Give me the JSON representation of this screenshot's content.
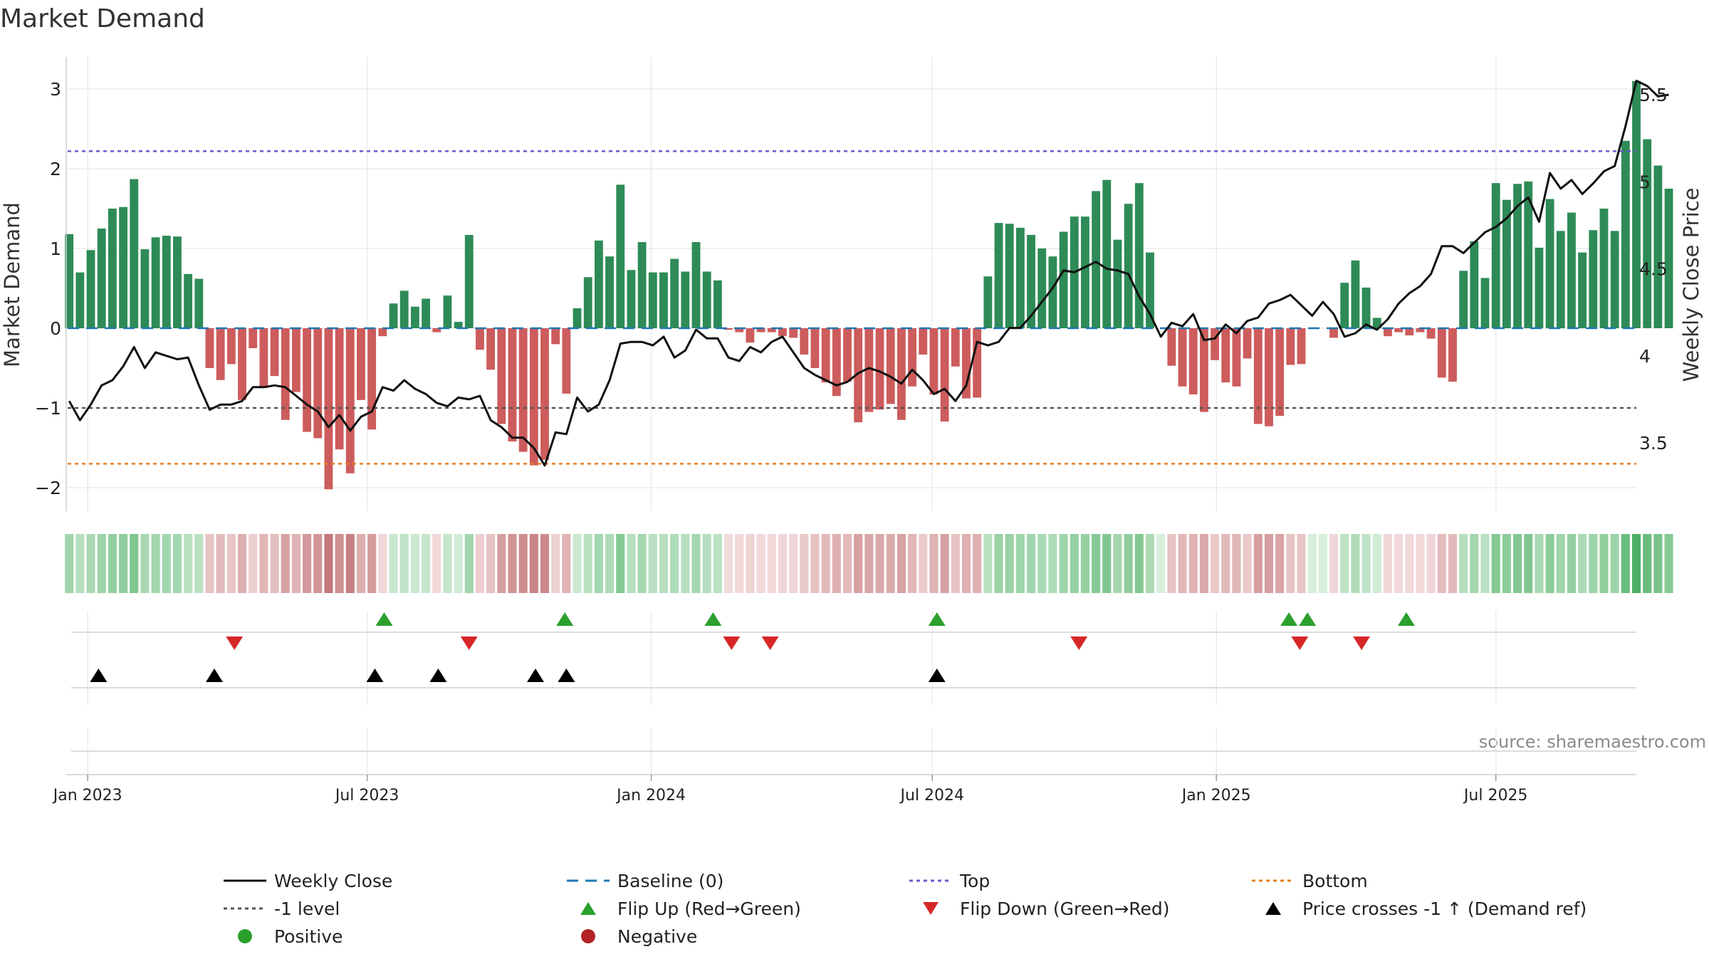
{
  "chart_data": {
    "type": "bar",
    "title": "Market Demand",
    "ylabel": "Market Demand",
    "y2label": "Weekly Close Price",
    "source": "source: sharemaestro.com",
    "ylim": [
      -2.3,
      3.3
    ],
    "y2lim": [
      3.1,
      5.65
    ],
    "yticks": [
      3,
      2,
      1,
      0,
      -1,
      -2
    ],
    "yticklabels": [
      "3",
      "2",
      "1",
      "0",
      "−1",
      "−2"
    ],
    "y2ticks": [
      5.5,
      5,
      4.5,
      4,
      3.5
    ],
    "y2ticklabels": [
      "5.5",
      "5",
      "4.5",
      "4",
      "3.5"
    ],
    "x_start": "2022-12-19",
    "x_end": "2025-09-30",
    "first_week": "2022-12-20",
    "xticks": [
      "2023-01-01",
      "2023-07-01",
      "2024-01-01",
      "2024-07-01",
      "2025-01-01",
      "2025-07-01"
    ],
    "xticklabels": [
      "Jan 2023",
      "Jul 2023",
      "Jan 2024",
      "Jul 2024",
      "Jan 2025",
      "Jul 2025"
    ],
    "reference_lines": {
      "top": 2.22,
      "bottom": -1.7,
      "minus_one": -1,
      "baseline": 0
    },
    "demand": [
      1.18,
      0.7,
      0.98,
      1.25,
      1.5,
      1.52,
      1.87,
      0.99,
      1.14,
      1.16,
      1.15,
      0.68,
      0.62,
      -0.5,
      -0.65,
      -0.45,
      -0.9,
      -0.25,
      -0.75,
      -0.6,
      -1.15,
      -0.8,
      -1.3,
      -1.38,
      -2.02,
      -1.52,
      -1.82,
      -0.9,
      -1.27,
      -0.1,
      0.31,
      0.47,
      0.27,
      0.37,
      -0.05,
      0.41,
      0.08,
      1.17,
      -0.27,
      -0.52,
      -1.2,
      -1.42,
      -1.55,
      -1.72,
      -1.65,
      -0.2,
      -0.82,
      0.25,
      0.64,
      1.1,
      0.9,
      1.8,
      0.73,
      1.08,
      0.7,
      0.7,
      0.87,
      0.71,
      1.08,
      0.71,
      0.6,
      -0.02,
      -0.05,
      -0.18,
      -0.05,
      -0.05,
      -0.1,
      -0.12,
      -0.33,
      -0.5,
      -0.68,
      -0.85,
      -0.67,
      -1.18,
      -1.05,
      -1.02,
      -0.95,
      -1.15,
      -0.73,
      -0.33,
      -0.83,
      -1.17,
      -0.48,
      -0.88,
      -0.87,
      0.65,
      1.32,
      1.31,
      1.26,
      1.17,
      1.0,
      0.9,
      1.21,
      1.4,
      1.4,
      1.72,
      1.86,
      1.11,
      1.56,
      1.82,
      0.95,
      0.0,
      -0.47,
      -0.73,
      -0.83,
      -1.05,
      -0.4,
      -0.68,
      -0.73,
      -0.38,
      -1.2,
      -1.23,
      -1.1,
      -0.46,
      -0.45,
      0.0,
      0.0,
      -0.12,
      0.57,
      0.85,
      0.51,
      0.13,
      -0.1,
      -0.05,
      -0.09,
      -0.05,
      -0.13,
      -0.62,
      -0.67,
      0.72,
      1.09,
      0.63,
      1.82,
      1.61,
      1.81,
      1.84,
      1.01,
      1.62,
      1.22,
      1.45,
      0.95,
      1.23,
      1.5,
      1.22,
      2.35,
      3.1,
      2.37,
      2.04,
      1.75
    ],
    "close": [
      3.74,
      3.63,
      3.72,
      3.83,
      3.86,
      3.94,
      4.05,
      3.93,
      4.02,
      4.0,
      3.98,
      3.99,
      3.83,
      3.69,
      3.72,
      3.72,
      3.74,
      3.82,
      3.82,
      3.83,
      3.82,
      3.77,
      3.72,
      3.68,
      3.59,
      3.66,
      3.57,
      3.65,
      3.68,
      3.82,
      3.8,
      3.86,
      3.81,
      3.78,
      3.73,
      3.71,
      3.76,
      3.75,
      3.77,
      3.63,
      3.59,
      3.53,
      3.53,
      3.47,
      3.37,
      3.56,
      3.55,
      3.76,
      3.68,
      3.72,
      3.86,
      4.07,
      4.08,
      4.08,
      4.06,
      4.11,
      3.99,
      4.03,
      4.15,
      4.1,
      4.1,
      3.99,
      3.97,
      4.05,
      4.02,
      4.08,
      4.11,
      4.02,
      3.93,
      3.89,
      3.86,
      3.83,
      3.85,
      3.9,
      3.93,
      3.91,
      3.88,
      3.84,
      3.92,
      3.86,
      3.78,
      3.81,
      3.74,
      3.83,
      4.08,
      4.06,
      4.08,
      4.16,
      4.16,
      4.23,
      4.31,
      4.39,
      4.49,
      4.48,
      4.51,
      4.54,
      4.5,
      4.49,
      4.47,
      4.34,
      4.24,
      4.11,
      4.19,
      4.17,
      4.24,
      4.09,
      4.1,
      4.18,
      4.13,
      4.2,
      4.22,
      4.3,
      4.32,
      4.35,
      4.29,
      4.23,
      4.31,
      4.24,
      4.11,
      4.13,
      4.18,
      4.15,
      4.21,
      4.3,
      4.36,
      4.4,
      4.47,
      4.63,
      4.63,
      4.59,
      4.65,
      4.71,
      4.74,
      4.79,
      4.86,
      4.91,
      4.77,
      5.05,
      4.96,
      5.01,
      4.93,
      4.99,
      5.06,
      5.09,
      5.32,
      5.58,
      5.55,
      5.49,
      5.5
    ],
    "flip_up": [
      "2023-07-12",
      "2023-11-06",
      "2024-02-10",
      "2024-07-04",
      "2025-02-17",
      "2025-03-01",
      "2025-05-04"
    ],
    "flip_down": [
      "2023-04-06",
      "2023-09-05",
      "2024-02-22",
      "2024-03-18",
      "2024-10-04",
      "2025-02-24",
      "2025-04-05"
    ],
    "price_cross_up": [
      "2023-01-08",
      "2023-03-24",
      "2023-07-06",
      "2023-08-16",
      "2023-10-18",
      "2023-11-07",
      "2024-07-04"
    ],
    "legend": {
      "weekly_close": "Weekly Close",
      "baseline": "Baseline (0)",
      "top": "Top",
      "bottom": "Bottom",
      "minus_one": "-1 level",
      "flip_up": "Flip Up (Red→Green)",
      "flip_down": "Flip Down (Green→Red)",
      "price_cross": "Price crosses -1 ↑ (Demand ref)",
      "positive": "Positive",
      "negative": "Negative"
    },
    "colors": {
      "pos_bar": "#2e8b57",
      "neg_bar": "#cd5c5c",
      "close_line": "#111111",
      "baseline": "#1f77b4",
      "top": "#6a5acd",
      "bottom": "#e67e22",
      "minus_one": "#555555",
      "flip_up": "#2ca02c",
      "flip_down": "#d62728",
      "cross": "#000000",
      "positive_dot": "#2ca02c",
      "negative_dot": "#b22222"
    }
  }
}
